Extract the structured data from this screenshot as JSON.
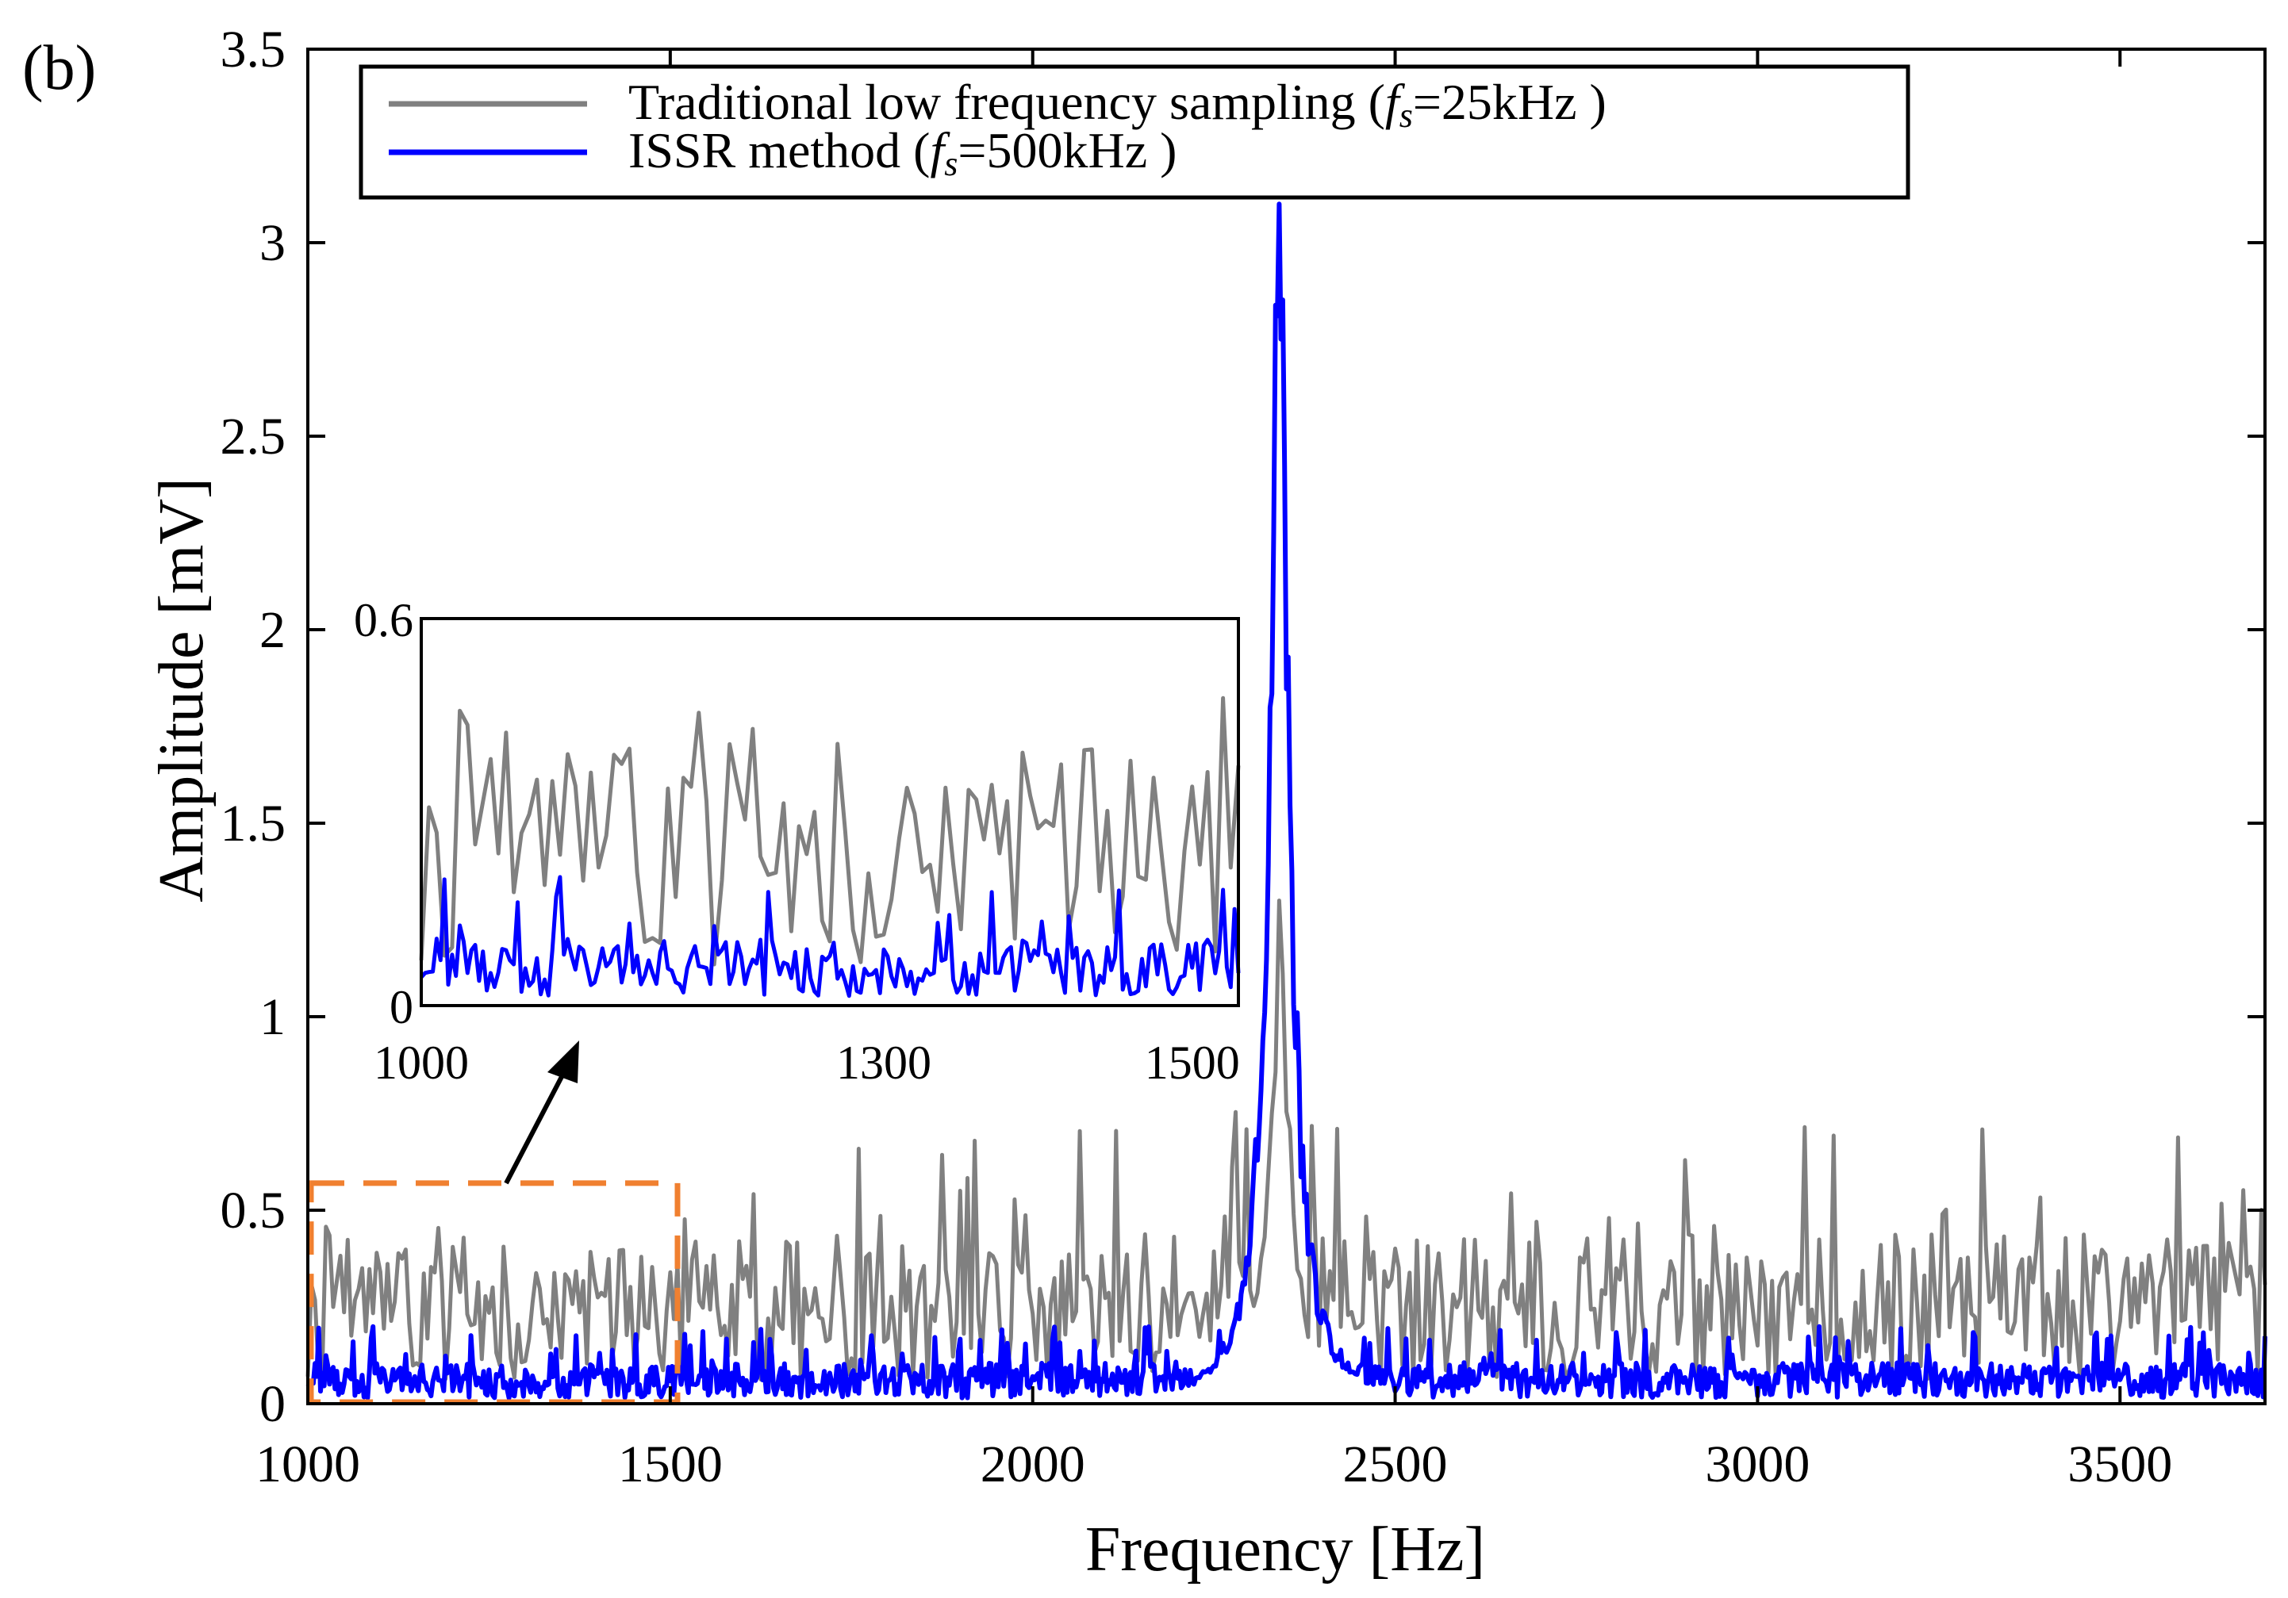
{
  "panel_label": "(b)",
  "chart_data": {
    "type": "line",
    "title": "",
    "xlabel": "Frequency [Hz]",
    "ylabel": "Amplitude [mV]",
    "xlim": [
      1000,
      3700
    ],
    "ylim": [
      0,
      3.5
    ],
    "xticks": [
      1000,
      1500,
      2000,
      2500,
      3000,
      3500
    ],
    "yticks": [
      0,
      0.5,
      1,
      1.5,
      2,
      2.5,
      3,
      3.5
    ],
    "ytick_labels": [
      "0",
      "0.5",
      "1",
      "1.5",
      "2",
      "2.5",
      "3",
      "3.5"
    ],
    "grid": false,
    "legend_position": "top",
    "series": [
      {
        "name": "Traditional low frequency sampling",
        "legend_prefix": "Traditional low frequency sampling  (",
        "legend_fs": "f",
        "legend_sub": "s",
        "legend_rest": "=25kHz  )",
        "color": "#808080",
        "noise_mean": 0.25,
        "noise_max": 0.76,
        "peak_x": 2340,
        "peak_y": 1.3,
        "x_step": 5
      },
      {
        "name": "ISSR method",
        "legend_prefix": "ISSR method  (",
        "legend_fs": "f",
        "legend_sub": "s",
        "legend_rest": "=500kHz  )",
        "color": "#0000ff",
        "noise_mean": 0.06,
        "noise_max": 0.2,
        "peak_x": 2340,
        "peak_y": 3.1,
        "x_step": 2.5
      }
    ],
    "zoom_region": {
      "xlim": [
        1000,
        1510
      ],
      "ylim": [
        0,
        0.57
      ],
      "color": "#f08030"
    },
    "inset": {
      "xlim": [
        1000,
        1530
      ],
      "ylim": [
        0,
        0.6
      ],
      "xticks": [
        1000,
        1300,
        1500
      ],
      "yticks": [
        0,
        0.6
      ],
      "ytick_labels": [
        "0",
        "0.6"
      ]
    }
  }
}
